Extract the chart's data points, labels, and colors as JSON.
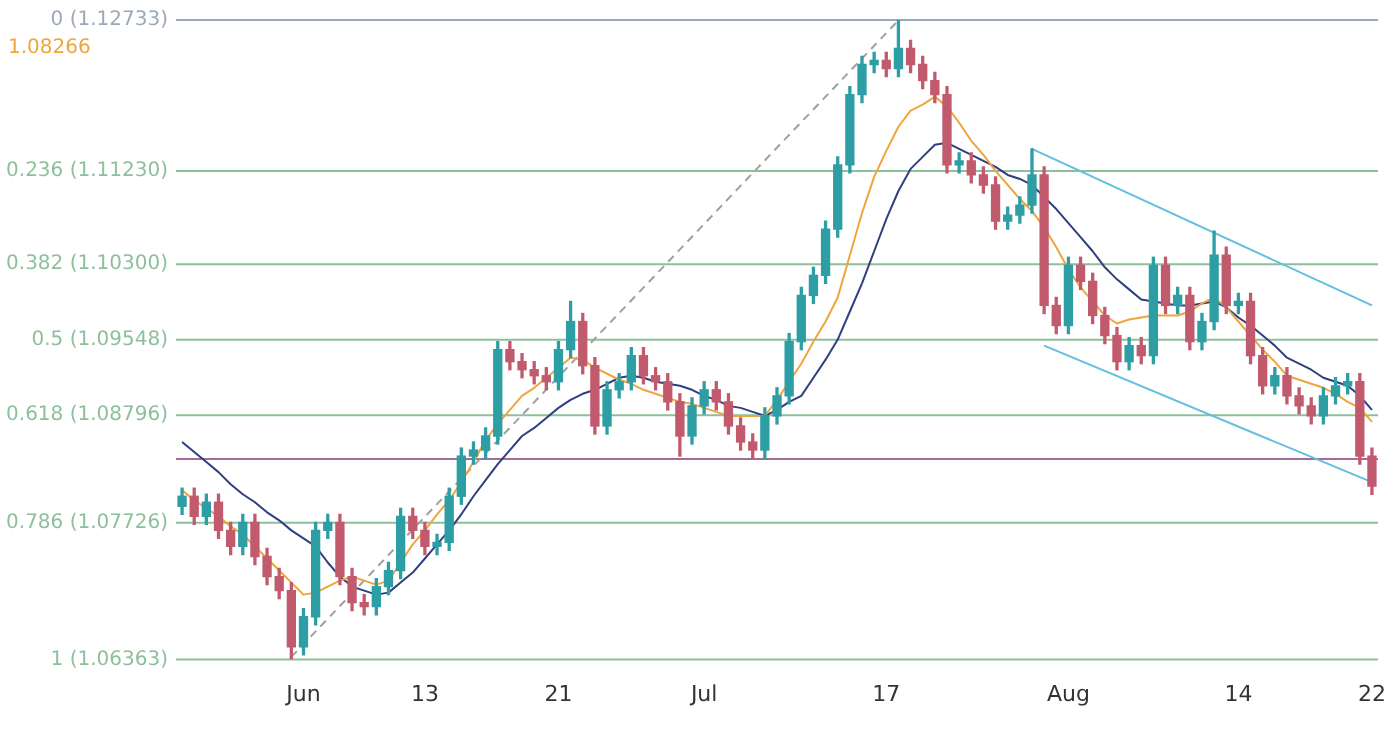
{
  "chart_data": {
    "type": "candlestick",
    "categories": [
      null,
      null,
      null,
      null,
      null,
      null,
      null,
      null,
      null,
      null,
      "Jun",
      null,
      null,
      null,
      null,
      null,
      null,
      null,
      null,
      null,
      "13",
      null,
      null,
      null,
      null,
      null,
      null,
      null,
      null,
      null,
      null,
      "21",
      null,
      null,
      null,
      null,
      null,
      null,
      null,
      null,
      null,
      null,
      null,
      "Jul",
      null,
      null,
      null,
      null,
      null,
      null,
      null,
      null,
      null,
      null,
      null,
      null,
      null,
      null,
      "17",
      null,
      null,
      null,
      null,
      null,
      null,
      null,
      null,
      null,
      null,
      null,
      null,
      null,
      null,
      "Aug",
      null,
      null,
      null,
      null,
      null,
      null,
      null,
      null,
      null,
      null,
      null,
      null,
      null,
      "14",
      null,
      null,
      null,
      null,
      null,
      null,
      null,
      null,
      null,
      null,
      "22"
    ],
    "ohlc": [
      [
        1.0789,
        1.0807,
        1.0781,
        1.0799
      ],
      [
        1.0799,
        1.0807,
        1.0771,
        1.0779
      ],
      [
        1.0779,
        1.0801,
        1.0771,
        1.0793
      ],
      [
        1.0793,
        1.0801,
        1.0757,
        1.0765
      ],
      [
        1.0765,
        1.0773,
        1.0741,
        1.0749
      ],
      [
        1.0749,
        1.0781,
        1.0741,
        1.0773
      ],
      [
        1.0773,
        1.0781,
        1.0731,
        1.0739
      ],
      [
        1.0739,
        1.0747,
        1.0711,
        1.0719
      ],
      [
        1.0719,
        1.0727,
        1.0697,
        1.0705
      ],
      [
        1.0705,
        1.0713,
        1.0637,
        1.0649
      ],
      [
        1.0649,
        1.0687,
        1.0641,
        1.0679
      ],
      [
        1.0679,
        1.0773,
        1.0671,
        1.0765
      ],
      [
        1.0765,
        1.0781,
        1.0757,
        1.0773
      ],
      [
        1.0773,
        1.0781,
        1.0711,
        1.0719
      ],
      [
        1.0719,
        1.0727,
        1.0685,
        1.0693
      ],
      [
        1.0693,
        1.0701,
        1.0681,
        1.0689
      ],
      [
        1.0689,
        1.0717,
        1.0681,
        1.0709
      ],
      [
        1.0709,
        1.0733,
        1.0701,
        1.0725
      ],
      [
        1.0725,
        1.0787,
        1.0717,
        1.0779
      ],
      [
        1.0779,
        1.0787,
        1.0757,
        1.0765
      ],
      [
        1.0765,
        1.0773,
        1.0741,
        1.0749
      ],
      [
        1.0749,
        1.0761,
        1.0741,
        1.0753
      ],
      [
        1.0753,
        1.0807,
        1.0745,
        1.0799
      ],
      [
        1.0799,
        1.0847,
        1.0791,
        1.0839
      ],
      [
        1.0839,
        1.0853,
        1.0831,
        1.0845
      ],
      [
        1.0845,
        1.0867,
        1.0837,
        1.0859
      ],
      [
        1.0859,
        1.0953,
        1.0851,
        1.0945
      ],
      [
        1.0945,
        1.0953,
        1.0925,
        1.0933
      ],
      [
        1.0933,
        1.0941,
        1.0917,
        1.0925
      ],
      [
        1.0925,
        1.0933,
        1.0911,
        1.0919
      ],
      [
        1.0919,
        1.0927,
        1.0905,
        1.0913
      ],
      [
        1.0913,
        1.0953,
        1.0905,
        1.0945
      ],
      [
        1.0945,
        1.0993,
        1.0937,
        1.0973
      ],
      [
        1.0973,
        1.0981,
        1.0921,
        1.0929
      ],
      [
        1.0929,
        1.0937,
        1.0861,
        1.0869
      ],
      [
        1.0869,
        1.0913,
        1.0861,
        1.0905
      ],
      [
        1.0905,
        1.0921,
        1.0897,
        1.0913
      ],
      [
        1.0913,
        1.0947,
        1.0905,
        1.0939
      ],
      [
        1.0939,
        1.0947,
        1.0911,
        1.0919
      ],
      [
        1.0919,
        1.0927,
        1.0905,
        1.0913
      ],
      [
        1.0913,
        1.0921,
        1.0885,
        1.0893
      ],
      [
        1.0893,
        1.0901,
        1.0839,
        1.0859
      ],
      [
        1.0859,
        1.0897,
        1.0851,
        1.0889
      ],
      [
        1.0889,
        1.0913,
        1.0881,
        1.0905
      ],
      [
        1.0905,
        1.0913,
        1.0885,
        1.0893
      ],
      [
        1.0893,
        1.0901,
        1.0861,
        1.0869
      ],
      [
        1.0869,
        1.0877,
        1.0845,
        1.0853
      ],
      [
        1.0853,
        1.0861,
        1.0837,
        1.0845
      ],
      [
        1.0845,
        1.0887,
        1.0837,
        1.0879
      ],
      [
        1.0879,
        1.0907,
        1.0871,
        1.0899
      ],
      [
        1.0899,
        1.0961,
        1.0891,
        1.0953
      ],
      [
        1.0953,
        1.1007,
        1.0945,
        1.0999
      ],
      [
        1.0999,
        1.1027,
        1.0991,
        1.1019
      ],
      [
        1.1019,
        1.1073,
        1.1011,
        1.1065
      ],
      [
        1.1065,
        1.1137,
        1.1057,
        1.1129
      ],
      [
        1.1129,
        1.1207,
        1.1121,
        1.1199
      ],
      [
        1.1199,
        1.1237,
        1.1191,
        1.1229
      ],
      [
        1.1229,
        1.1241,
        1.1221,
        1.1233
      ],
      [
        1.1233,
        1.1241,
        1.1217,
        1.1225
      ],
      [
        1.1225,
        1.1273,
        1.1217,
        1.1245
      ],
      [
        1.1245,
        1.1253,
        1.1221,
        1.1229
      ],
      [
        1.1229,
        1.1237,
        1.1205,
        1.1213
      ],
      [
        1.1213,
        1.1221,
        1.1191,
        1.1199
      ],
      [
        1.1199,
        1.1207,
        1.1121,
        1.1129
      ],
      [
        1.1129,
        1.1141,
        1.1121,
        1.1133
      ],
      [
        1.1133,
        1.1141,
        1.1111,
        1.1119
      ],
      [
        1.1119,
        1.1127,
        1.1101,
        1.1109
      ],
      [
        1.1109,
        1.1117,
        1.1065,
        1.1073
      ],
      [
        1.1073,
        1.1087,
        1.1065,
        1.1079
      ],
      [
        1.1079,
        1.1097,
        1.1071,
        1.1089
      ],
      [
        1.1089,
        1.1145,
        1.1081,
        1.1119
      ],
      [
        1.1119,
        1.1127,
        1.0981,
        1.0989
      ],
      [
        1.0989,
        1.0997,
        1.0961,
        1.0969
      ],
      [
        1.0969,
        1.1037,
        1.0961,
        1.1029
      ],
      [
        1.1029,
        1.1037,
        1.1005,
        1.1013
      ],
      [
        1.1013,
        1.1021,
        1.0971,
        1.0979
      ],
      [
        1.0979,
        1.0987,
        1.0951,
        1.0959
      ],
      [
        1.0959,
        1.0967,
        1.0925,
        1.0933
      ],
      [
        1.0933,
        1.0957,
        1.0925,
        1.0949
      ],
      [
        1.0949,
        1.0957,
        1.0931,
        1.0939
      ],
      [
        1.0939,
        1.1037,
        1.0931,
        1.1029
      ],
      [
        1.1029,
        1.1037,
        1.0981,
        1.0989
      ],
      [
        1.0989,
        1.1007,
        1.0981,
        1.0999
      ],
      [
        1.0999,
        1.1007,
        1.0945,
        1.0953
      ],
      [
        1.0953,
        1.0981,
        1.0945,
        1.0973
      ],
      [
        1.0973,
        1.1063,
        1.0965,
        1.1039
      ],
      [
        1.1039,
        1.1047,
        1.0981,
        1.0989
      ],
      [
        1.0989,
        1.1001,
        1.0981,
        1.0993
      ],
      [
        1.0993,
        1.1001,
        1.0931,
        1.0939
      ],
      [
        1.0939,
        1.0947,
        1.0901,
        1.0909
      ],
      [
        1.0909,
        1.0927,
        1.0901,
        1.0919
      ],
      [
        1.0919,
        1.0927,
        1.0891,
        1.0899
      ],
      [
        1.0899,
        1.0907,
        1.0881,
        1.0889
      ],
      [
        1.0889,
        1.0897,
        1.0871,
        1.0879
      ],
      [
        1.0879,
        1.0907,
        1.0871,
        1.0899
      ],
      [
        1.0899,
        1.0917,
        1.0891,
        1.0909
      ],
      [
        1.0909,
        1.0921,
        1.0901,
        1.0913
      ],
      [
        1.0913,
        1.0921,
        1.0831,
        1.0839
      ],
      [
        1.0839,
        1.0847,
        1.0801,
        1.0809
      ]
    ],
    "series": [
      {
        "type": "line",
        "color": "#f0a53c",
        "values": [
          1.0805,
          1.0795,
          1.0787,
          1.0779,
          1.0769,
          1.0761,
          1.0749,
          1.0737,
          1.0725,
          1.0713,
          1.0701,
          1.0703,
          1.0709,
          1.0715,
          1.0719,
          1.0715,
          1.0711,
          1.0715,
          1.0733,
          1.0751,
          1.0765,
          1.0781,
          1.0795,
          1.0813,
          1.0833,
          1.0855,
          1.0871,
          1.0885,
          1.0899,
          1.0907,
          1.0917,
          1.0927,
          1.0937,
          1.0935,
          1.0927,
          1.0921,
          1.0915,
          1.0911,
          1.0905,
          1.0901,
          1.0897,
          1.0893,
          1.0891,
          1.0887,
          1.0883,
          1.0879,
          1.0879,
          1.0879,
          1.0879,
          1.0895,
          1.0913,
          1.0931,
          1.0953,
          1.0973,
          1.0997,
          1.1039,
          1.1081,
          1.1117,
          1.1143,
          1.1167,
          1.1183,
          1.1189,
          1.1197,
          1.1187,
          1.1171,
          1.1153,
          1.1139,
          1.1123,
          1.1109,
          1.1095,
          1.1083,
          1.1067,
          1.1047,
          1.1025,
          1.1007,
          1.0993,
          1.0979,
          1.0971,
          1.0975,
          1.0977,
          1.0979,
          1.0979,
          1.0979,
          1.0983,
          1.0991,
          1.0997,
          1.0987,
          1.0973,
          1.0959,
          1.0945,
          1.0933,
          1.0919,
          1.0915,
          1.0911,
          1.0907,
          1.0901,
          1.0893,
          1.0887,
          1.0873
        ]
      },
      {
        "type": "line",
        "color": "#2f3f7f",
        "values": [
          1.0853,
          1.0843,
          1.0833,
          1.0823,
          1.0811,
          1.0801,
          1.0793,
          1.0783,
          1.0775,
          1.0765,
          1.0757,
          1.0749,
          1.0733,
          1.0719,
          1.0709,
          1.0705,
          1.0701,
          1.0703,
          1.0713,
          1.0723,
          1.0737,
          1.0751,
          1.0765,
          1.0781,
          1.0799,
          1.0815,
          1.0831,
          1.0845,
          1.0859,
          1.0867,
          1.0877,
          1.0887,
          1.0895,
          1.0901,
          1.0905,
          1.0911,
          1.0917,
          1.0919,
          1.0917,
          1.0913,
          1.0911,
          1.0909,
          1.0905,
          1.0899,
          1.0895,
          1.0889,
          1.0887,
          1.0883,
          1.0879,
          1.0885,
          1.0893,
          1.0899,
          1.0917,
          1.0935,
          1.0955,
          1.0983,
          1.1011,
          1.1043,
          1.1075,
          1.1103,
          1.1125,
          1.1137,
          1.1149,
          1.1151,
          1.1145,
          1.1139,
          1.1133,
          1.1127,
          1.1119,
          1.1115,
          1.1109,
          1.1097,
          1.1085,
          1.1071,
          1.1057,
          1.1043,
          1.1027,
          1.1015,
          1.1005,
          1.0995,
          1.0993,
          1.0991,
          1.0989,
          1.0989,
          1.0991,
          1.0993,
          1.0987,
          1.0977,
          1.0969,
          1.0959,
          1.0949,
          1.0937,
          1.0931,
          1.0925,
          1.0917,
          1.0913,
          1.0909,
          1.0899,
          1.0885
        ]
      },
      {
        "type": "line",
        "color": "#62bfe0",
        "values": [
          null,
          null,
          null,
          null,
          null,
          null,
          null,
          null,
          null,
          null,
          null,
          null,
          null,
          null,
          null,
          null,
          null,
          null,
          null,
          null,
          null,
          null,
          null,
          null,
          null,
          null,
          null,
          null,
          null,
          null,
          null,
          null,
          null,
          null,
          null,
          null,
          null,
          null,
          null,
          null,
          null,
          null,
          null,
          null,
          null,
          null,
          null,
          null,
          null,
          null,
          null,
          null,
          null,
          null,
          null,
          null,
          null,
          null,
          null,
          null,
          null,
          null,
          null,
          null,
          null,
          null,
          null,
          null,
          null,
          null,
          1.1145,
          null,
          null,
          null,
          null,
          null,
          null,
          null,
          null,
          null,
          null,
          null,
          null,
          null,
          null,
          null,
          null,
          null,
          null,
          null,
          null,
          null,
          null,
          null,
          null,
          null,
          null,
          null,
          1.0989
        ]
      },
      {
        "type": "line",
        "color": "#62bfe0",
        "values": [
          null,
          null,
          null,
          null,
          null,
          null,
          null,
          null,
          null,
          null,
          null,
          null,
          null,
          null,
          null,
          null,
          null,
          null,
          null,
          null,
          null,
          null,
          null,
          null,
          null,
          null,
          null,
          null,
          null,
          null,
          null,
          null,
          null,
          null,
          null,
          null,
          null,
          null,
          null,
          null,
          null,
          null,
          null,
          null,
          null,
          null,
          null,
          null,
          null,
          null,
          null,
          null,
          null,
          null,
          null,
          null,
          null,
          null,
          null,
          null,
          null,
          null,
          null,
          null,
          null,
          null,
          null,
          null,
          null,
          null,
          null,
          1.0949,
          null,
          null,
          null,
          null,
          null,
          null,
          null,
          null,
          null,
          null,
          null,
          null,
          null,
          null,
          null,
          null,
          null,
          null,
          null,
          null,
          null,
          null,
          null,
          null,
          null,
          null,
          1.0813
        ]
      },
      {
        "type": "line",
        "color": "#a0a0a0",
        "line_style": "dashed",
        "values": [
          null,
          null,
          null,
          null,
          null,
          null,
          null,
          null,
          null,
          1.0639,
          null,
          null,
          null,
          null,
          null,
          null,
          null,
          null,
          null,
          null,
          null,
          null,
          null,
          null,
          null,
          null,
          null,
          null,
          null,
          null,
          null,
          null,
          null,
          null,
          null,
          null,
          null,
          null,
          null,
          null,
          null,
          null,
          null,
          null,
          null,
          null,
          null,
          null,
          null,
          null,
          null,
          null,
          null,
          null,
          null,
          null,
          null,
          null,
          null,
          1.1273,
          null,
          null,
          null,
          null,
          null,
          null,
          null,
          null,
          null,
          null,
          null,
          null,
          null,
          null,
          null,
          null,
          null,
          null,
          null,
          null,
          null,
          null,
          null,
          null,
          null,
          null,
          null,
          null,
          null,
          null,
          null,
          null,
          null,
          null,
          null,
          null,
          null,
          null,
          null
        ]
      }
    ],
    "ylim": [
      1.06363,
      1.12733
    ],
    "tick_labels": "x",
    "legend": false,
    "grid": false,
    "ref_lines": [
      {
        "axis": "y",
        "value": 1.12733,
        "label": "0 (1.12733)",
        "color": "#9aa9b8"
      },
      {
        "axis": "y",
        "value": 1.1123,
        "label": "0.236 (1.11230)",
        "color": "#8cc09a"
      },
      {
        "axis": "y",
        "value": 1.103,
        "label": "0.382 (1.10300)",
        "color": "#8cc09a"
      },
      {
        "axis": "y",
        "value": 1.09548,
        "label": "0.5 (1.09548)",
        "color": "#8cc09a"
      },
      {
        "axis": "y",
        "value": 1.08796,
        "label": "0.618 (1.08796)",
        "color": "#8cc09a"
      },
      {
        "axis": "y",
        "value": 1.07726,
        "label": "0.786 (1.07726)",
        "color": "#8cc09a"
      },
      {
        "axis": "y",
        "value": 1.06363,
        "label": "1 (1.06363)",
        "color": "#8cc09a"
      },
      {
        "axis": "y",
        "value": 1.0836,
        "color": "#a56b93"
      }
    ],
    "annotations": [
      "1.08266"
    ]
  }
}
